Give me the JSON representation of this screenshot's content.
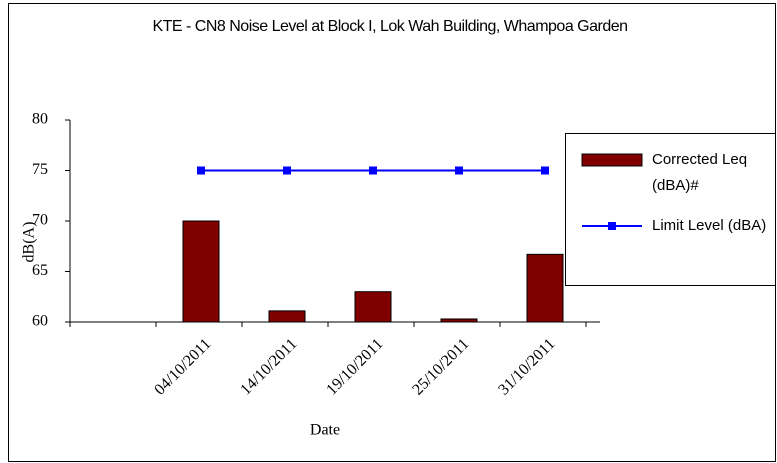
{
  "chart_data": {
    "type": "bar",
    "title": "KTE - CN8 Noise Level at Block I, Lok Wah Building, Whampoa Garden",
    "categories": [
      null,
      "04/10/2011",
      "14/10/2011",
      "19/10/2011",
      "25/10/2011",
      "31/10/2011"
    ],
    "series": [
      {
        "name": "Corrected Leq (dBA)#",
        "type": "bar",
        "color": "#800000",
        "values": [
          null,
          70,
          61.1,
          63,
          60.3,
          66.7
        ]
      },
      {
        "name": "Limit Level (dBA)",
        "type": "line",
        "color": "#0000ff",
        "values": [
          null,
          75,
          75,
          75,
          75,
          75
        ]
      }
    ],
    "xlabel": "Date",
    "ylabel": "dB(A)",
    "ylim": [
      60,
      80
    ],
    "yticks": [
      60,
      65,
      70,
      75,
      80
    ],
    "legend": "right"
  }
}
